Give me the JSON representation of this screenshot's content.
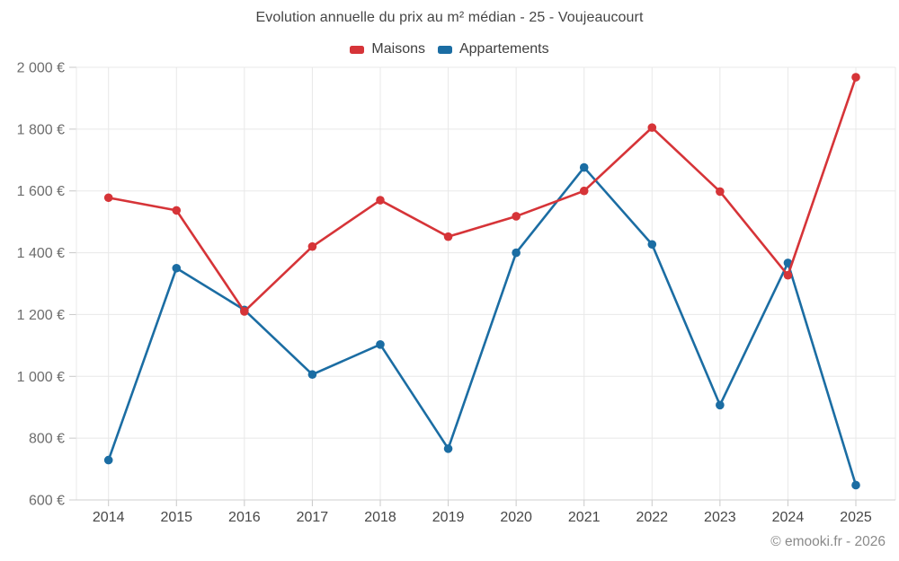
{
  "header": {
    "title": "Evolution annuelle du prix au m² médian - 25 - Voujeaucourt"
  },
  "footer": {
    "copyright": "© emooki.fr - 2026"
  },
  "chart_data": {
    "type": "line",
    "title": "Evolution annuelle du prix au m² médian - 25 - Voujeaucourt",
    "categories": [
      "2014",
      "2015",
      "2016",
      "2017",
      "2018",
      "2019",
      "2020",
      "2021",
      "2022",
      "2023",
      "2024",
      "2025"
    ],
    "series": [
      {
        "name": "Maisons",
        "color": "#d63438",
        "values": [
          1578,
          1537,
          1210,
          1420,
          1570,
          1452,
          1518,
          1600,
          1805,
          1598,
          1327,
          1968
        ]
      },
      {
        "name": "Appartements",
        "color": "#1b6da3",
        "values": [
          729,
          1350,
          1215,
          1006,
          1103,
          766,
          1400,
          1676,
          1427,
          907,
          1367,
          648
        ]
      }
    ],
    "ylim": [
      600,
      2000
    ],
    "ytick_step": 200,
    "ytick_labels": [
      "600 €",
      "800 €",
      "1 000 €",
      "1 200 €",
      "1 400 €",
      "1 600 €",
      "1 800 €",
      "2 000 €"
    ],
    "currency_suffix": " €",
    "grid": true,
    "legend_position": "top",
    "draw_order": [
      "Appartements",
      "Maisons"
    ]
  },
  "style": {
    "grid_color": "#e8e8e8",
    "axis_line_color": "#cfcfcf",
    "tick_color": "#c8c8c8",
    "ylabel_color": "#6d6d6d",
    "xlabel_color": "#474747"
  }
}
